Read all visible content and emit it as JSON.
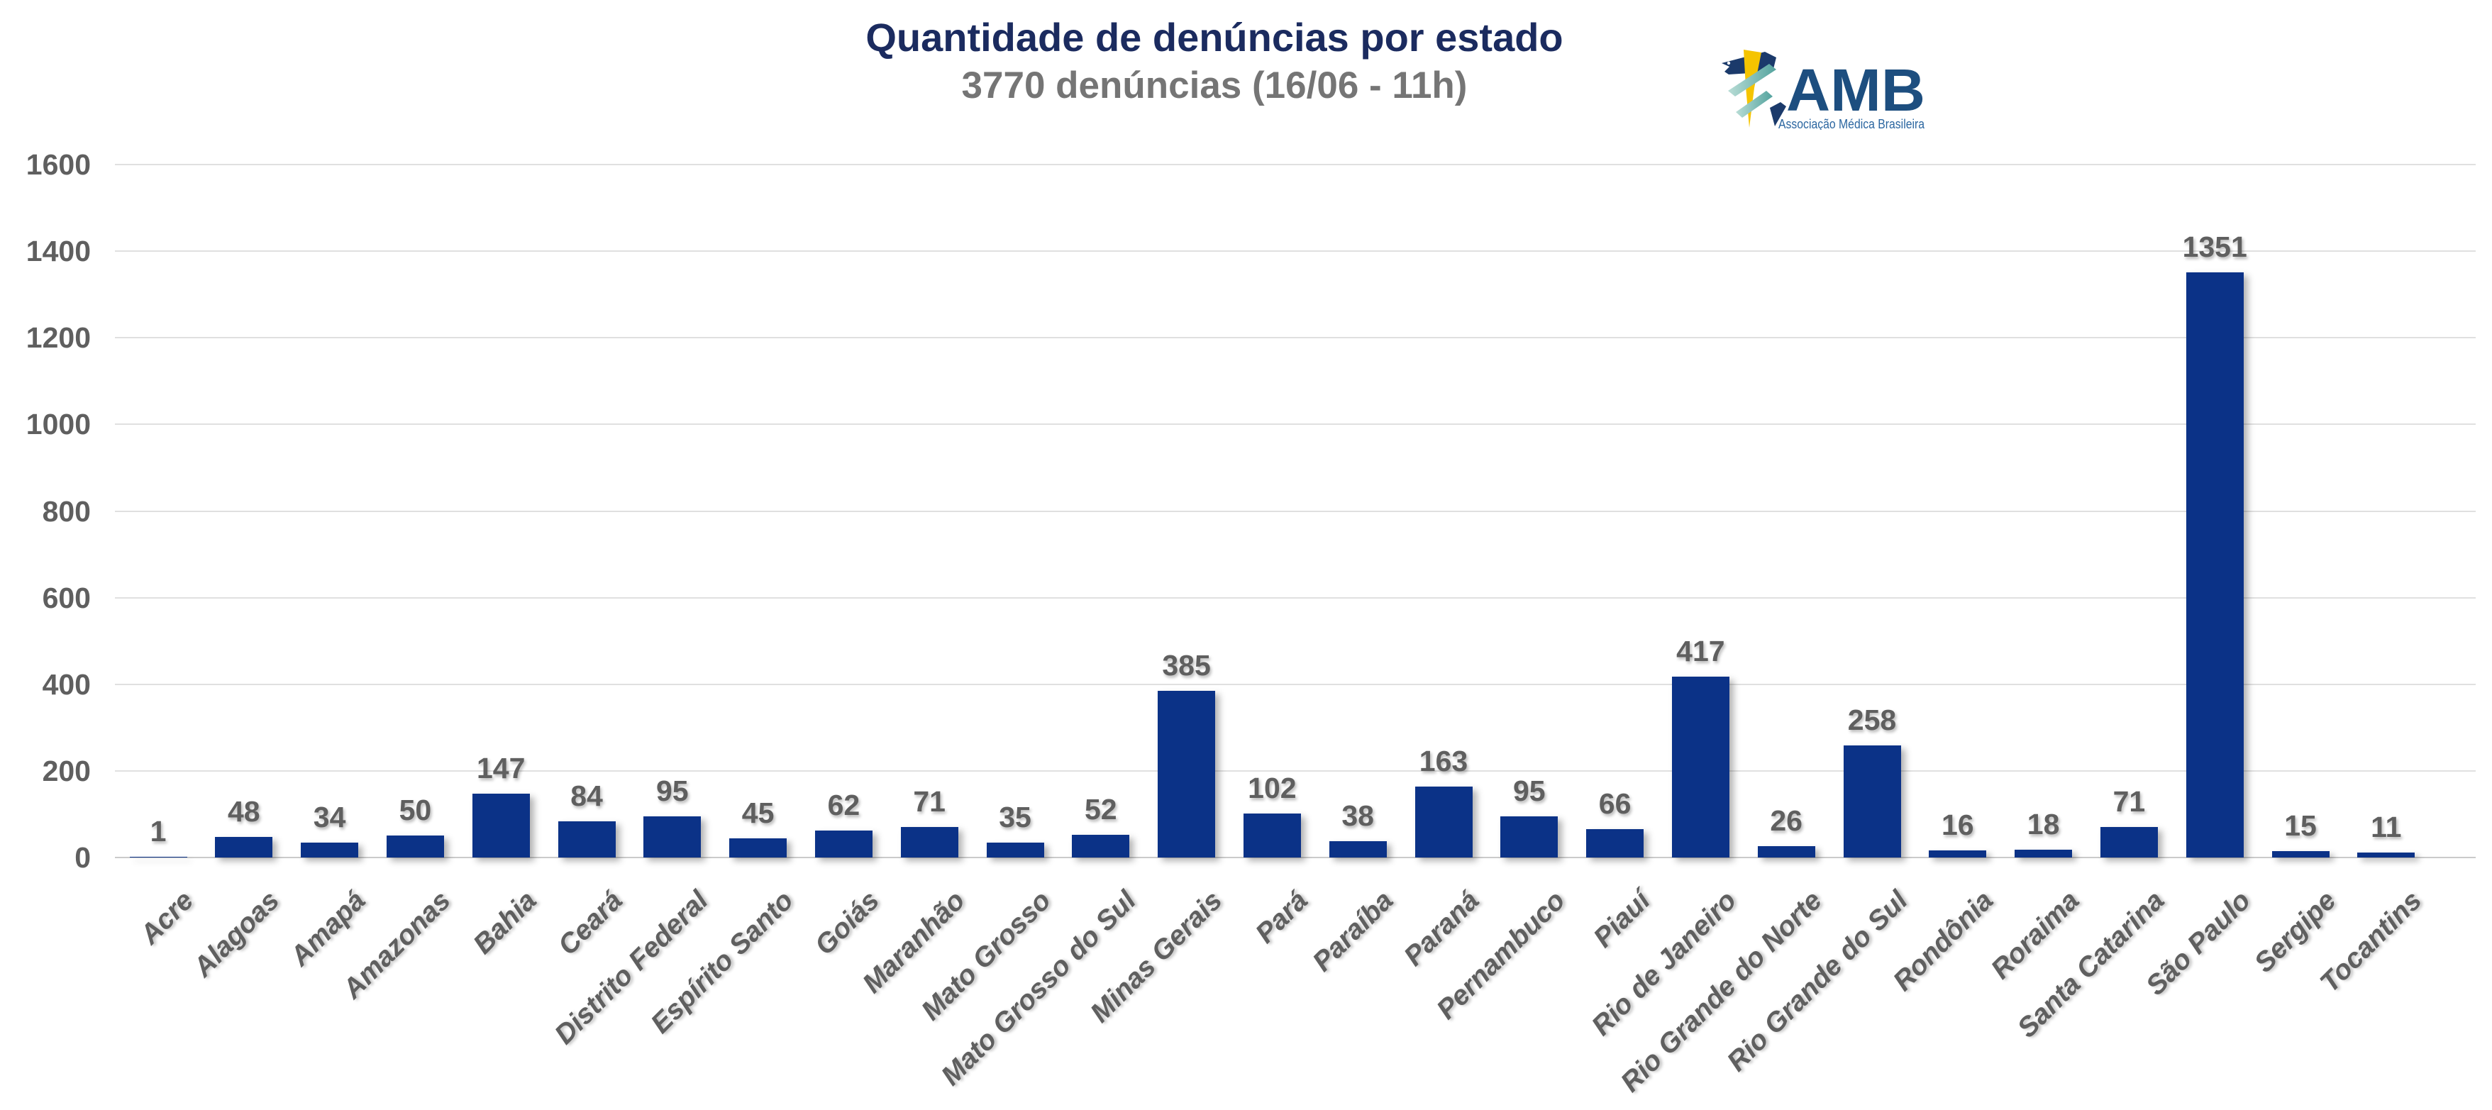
{
  "header": {
    "title": "Quantidade de denúncias por estado",
    "subtitle": "3770 denúncias (16/06 - 11h)"
  },
  "logo": {
    "name": "AMB",
    "caption": "Associação Médica Brasileira"
  },
  "colors": {
    "title_navy": "#1B2B5F",
    "subtitle_gray": "#757575",
    "bar_blue": "#0B3287",
    "axis_gray": "#5F5F5F",
    "gridline_gray": "#E0E0E0",
    "logo_blue": "#1D4E7F",
    "logo_caption_blue": "#2B66A0",
    "logo_navy": "#1B3A6B",
    "logo_yellow": "#F5C400",
    "logo_teal_dark": "#53A39E",
    "logo_teal_light": "#B9DDD6"
  },
  "chart_data": {
    "type": "bar",
    "title": "Quantidade de denúncias por estado",
    "subtitle": "3770 denúncias (16/06 - 11h)",
    "xlabel": "",
    "ylabel": "",
    "categories": [
      "Acre",
      "Alagoas",
      "Amapá",
      "Amazonas",
      "Bahia",
      "Ceará",
      "Distrito Federal",
      "Espírito Santo",
      "Goiás",
      "Maranhão",
      "Mato Grosso",
      "Mato Grosso do Sul",
      "Minas Gerais",
      "Pará",
      "Paraíba",
      "Paraná",
      "Pernambuco",
      "Piauí",
      "Rio de Janeiro",
      "Rio Grande do Norte",
      "Rio Grande do Sul",
      "Rondônia",
      "Roraima",
      "Santa Catarina",
      "São Paulo",
      "Sergipe",
      "Tocantins"
    ],
    "values": [
      1,
      48,
      34,
      50,
      147,
      84,
      95,
      45,
      62,
      71,
      35,
      52,
      385,
      102,
      38,
      163,
      95,
      66,
      417,
      26,
      258,
      16,
      18,
      71,
      1351,
      15,
      11
    ],
    "ylim": [
      0,
      1600
    ],
    "y_ticks": [
      0,
      200,
      400,
      600,
      800,
      1000,
      1200,
      1400,
      1600
    ],
    "grid": true,
    "legend_position": "none",
    "bar_color": "#0B3287",
    "value_label_color": "#5F5F5F"
  }
}
